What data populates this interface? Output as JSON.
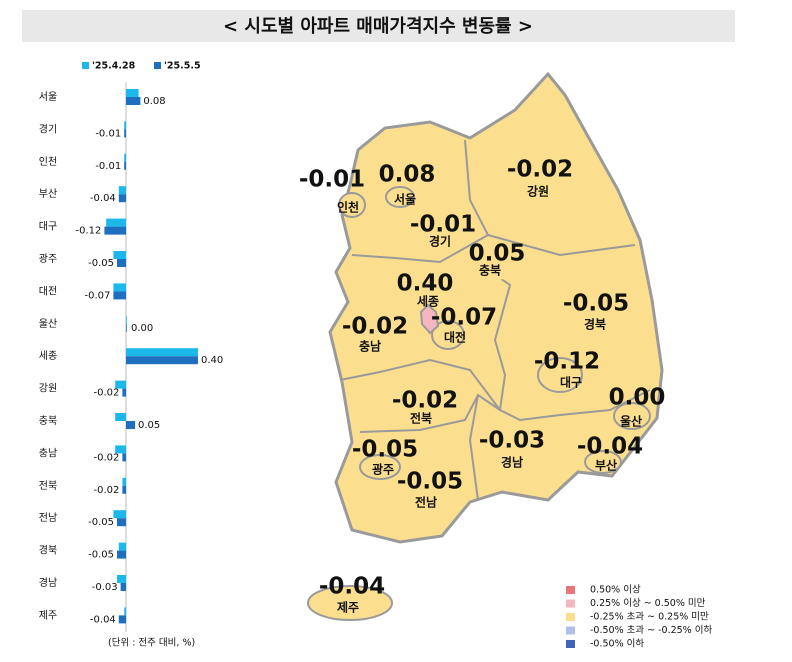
{
  "title": "< 시도별 아파트 매매가격지수 변동률 >",
  "chart_data": {
    "type": "bar",
    "orientation": "horizontal",
    "categories": [
      "서울",
      "경기",
      "인천",
      "부산",
      "대구",
      "광주",
      "대전",
      "울산",
      "세종",
      "강원",
      "충북",
      "충남",
      "전북",
      "전남",
      "경북",
      "경남",
      "제주"
    ],
    "series": [
      {
        "name": "'25.4.28",
        "color": "#1cb8ec",
        "values": [
          0.07,
          -0.01,
          -0.01,
          -0.04,
          -0.11,
          -0.07,
          -0.07,
          0.0,
          0.4,
          -0.06,
          -0.06,
          -0.06,
          -0.02,
          -0.07,
          -0.04,
          -0.05,
          -0.01
        ]
      },
      {
        "name": "'25.5.5",
        "color": "#1f6fc0",
        "values": [
          0.08,
          -0.01,
          -0.01,
          -0.04,
          -0.12,
          -0.05,
          -0.07,
          0.0,
          0.4,
          -0.02,
          0.05,
          -0.02,
          -0.02,
          -0.05,
          -0.05,
          -0.03,
          -0.04
        ],
        "value_labels": [
          "0.08",
          "-0.01",
          "-0.01",
          "-0.04",
          "-0.12",
          "-0.05",
          "-0.07",
          "0.00",
          "0.40",
          "-0.02",
          "0.05",
          "-0.02",
          "-0.02",
          "-0.05",
          "-0.05",
          "-0.03",
          "-0.04"
        ]
      }
    ],
    "xlim": [
      -0.3,
      0.45
    ],
    "footnote": "(단위 : 전주 대비, %)"
  },
  "map": {
    "colors": [
      "#fbdf8f",
      "#fbdf8f",
      "#fbdf8f",
      "#fbdf8f",
      "#fbdf8f",
      "#fbdf8f",
      "#fbdf8f",
      "#fbdf8f",
      "#f4b6bf",
      "#fbdf8f",
      "#fbdf8f",
      "#fbdf8f",
      "#fbdf8f",
      "#fbdf8f",
      "#fbdf8f",
      "#fbdf8f",
      "#fbdf8f"
    ],
    "legend": [
      {
        "label": "0.50% 이상",
        "color": "#e8747c"
      },
      {
        "label": "0.25% 이상 ~ 0.50% 미만",
        "color": "#f4b6bf"
      },
      {
        "label": "-0.25% 초과 ~ 0.25% 미만",
        "color": "#fbdf8f"
      },
      {
        "label": "-0.50% 초과 ~ -0.25% 이하",
        "color": "#aebfe8"
      },
      {
        "label": "-0.50% 이하",
        "color": "#3f63b5"
      }
    ]
  }
}
